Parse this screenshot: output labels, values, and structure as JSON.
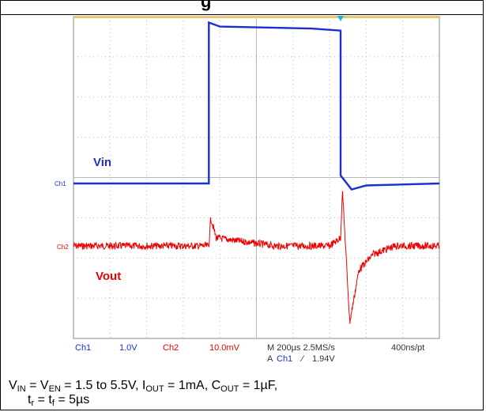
{
  "figure": {
    "title_fragment": "g"
  },
  "chart_data": {
    "type": "line",
    "x_divisions": 10,
    "y_divisions": 8,
    "series": [
      {
        "name": "Vin",
        "channel": "Ch1",
        "color": "#1a2fd1",
        "volts_per_div": "1.0V",
        "x": [
          0,
          3.7,
          3.7,
          4.0,
          6.5,
          7.3,
          7.3,
          7.6,
          8.0,
          10
        ],
        "y": [
          1.5,
          1.5,
          5.5,
          5.4,
          5.35,
          5.3,
          1.7,
          1.35,
          1.45,
          1.5
        ]
      },
      {
        "name": "Vout",
        "channel": "Ch2",
        "color": "#ee0000",
        "volts_per_div": "10.0mV",
        "x": [
          0,
          3.7,
          3.75,
          3.9,
          4.3,
          5.5,
          7.0,
          7.3,
          7.35,
          7.55,
          7.8,
          8.2,
          8.8,
          10
        ],
        "y": [
          0,
          0,
          7,
          2,
          1.5,
          0,
          0,
          2,
          14,
          -19,
          -6,
          -2,
          0,
          0
        ]
      }
    ],
    "labels": {
      "vin": "Vin",
      "vout": "Vout",
      "ch1_marker": "Ch1",
      "ch2_marker": "Ch2"
    },
    "readout": {
      "ch1": "Ch1",
      "ch1_scale": "1.0V",
      "ch2": "Ch2",
      "ch2_scale": "10.0mV",
      "timebase": "M 200µs 2.5MS/s",
      "trigger": "A",
      "trigger_ch": "Ch1",
      "trigger_slope": "∕",
      "trigger_level": "1.94V",
      "record": "400ns/pt"
    }
  },
  "caption": {
    "line1": "V<sub>IN</sub> = V<sub>EN</sub> = 1.5 to 5.5V, I<sub>OUT</sub> = 1mA, C<sub>OUT</sub> = 1µF,",
    "line2": "t<sub>r</sub> = t<sub>f</sub> = 5µs"
  }
}
